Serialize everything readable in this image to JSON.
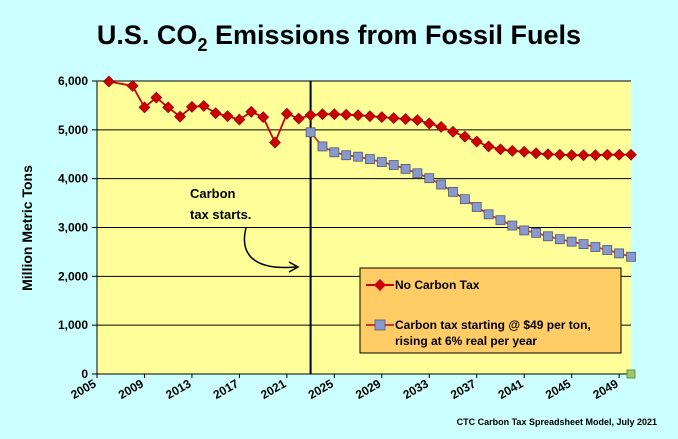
{
  "chart_data": {
    "type": "line",
    "title_prefix": "U.S. CO",
    "title_subscript": "2",
    "title_suffix": " Emissions from Fossil Fuels",
    "ylabel": "Million Metric Tons",
    "xlabel": "",
    "ylim": [
      0,
      6000
    ],
    "xlim": [
      2005,
      2050
    ],
    "yticks": [
      {
        "v": 0,
        "label": "0"
      },
      {
        "v": 1000,
        "label": "1,000"
      },
      {
        "v": 2000,
        "label": "2,000"
      },
      {
        "v": 3000,
        "label": "3,000"
      },
      {
        "v": 4000,
        "label": "4,000"
      },
      {
        "v": 5000,
        "label": "5,000"
      },
      {
        "v": 6000,
        "label": "6,000"
      }
    ],
    "xticks": [
      2005,
      2009,
      2013,
      2017,
      2021,
      2025,
      2029,
      2033,
      2037,
      2041,
      2045,
      2049
    ],
    "grid": "horizontal",
    "legend_position": "bottom-right",
    "annotation": {
      "line1": "Carbon",
      "line2": "tax starts.",
      "year": 2023
    },
    "credit": "CTC Carbon Tax Spreadsheet Model, July 2021",
    "series": [
      {
        "name": "No Carbon Tax",
        "marker": "diamond",
        "color": "#cc0000",
        "line_color": "#cc0000",
        "x": [
          2006,
          2008,
          2009,
          2010,
          2011,
          2012,
          2013,
          2014,
          2015,
          2016,
          2017,
          2018,
          2019,
          2020,
          2021,
          2022,
          2023,
          2024,
          2025,
          2026,
          2027,
          2028,
          2029,
          2030,
          2031,
          2032,
          2033,
          2034,
          2035,
          2036,
          2037,
          2038,
          2039,
          2040,
          2041,
          2042,
          2043,
          2044,
          2045,
          2046,
          2047,
          2048,
          2049,
          2050
        ],
        "values": [
          5990,
          5900,
          5460,
          5660,
          5460,
          5270,
          5470,
          5490,
          5340,
          5280,
          5210,
          5370,
          5260,
          4740,
          5330,
          5230,
          5300,
          5320,
          5320,
          5310,
          5300,
          5280,
          5260,
          5240,
          5220,
          5200,
          5130,
          5060,
          4960,
          4860,
          4760,
          4660,
          4600,
          4570,
          4550,
          4520,
          4500,
          4490,
          4480,
          4480,
          4480,
          4490,
          4490,
          4490
        ]
      },
      {
        "name": "Carbon tax starting @ $49 per ton,",
        "name_line2": "rising at 6% real per year",
        "marker": "square",
        "color": "#8899cc",
        "line_color": "#cc3333",
        "x": [
          2023,
          2024,
          2025,
          2026,
          2027,
          2028,
          2029,
          2030,
          2031,
          2032,
          2033,
          2034,
          2035,
          2036,
          2037,
          2038,
          2039,
          2040,
          2041,
          2042,
          2043,
          2044,
          2045,
          2046,
          2047,
          2048,
          2049,
          2050
        ],
        "values": [
          4950,
          4660,
          4540,
          4480,
          4450,
          4400,
          4340,
          4280,
          4200,
          4110,
          4010,
          3880,
          3730,
          3580,
          3420,
          3270,
          3150,
          3040,
          2940,
          2890,
          2820,
          2760,
          2710,
          2660,
          2600,
          2540,
          2470,
          2400
        ]
      }
    ]
  }
}
